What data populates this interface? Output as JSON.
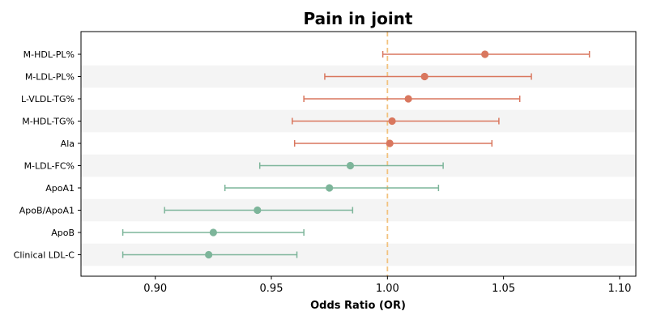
{
  "chart_data": {
    "type": "forest",
    "title": "Pain in joint",
    "xlabel": "Odds Ratio (OR)",
    "ylabel": "",
    "xlim": [
      0.868,
      1.107
    ],
    "xticks": [
      0.9,
      0.95,
      1.0,
      1.05,
      1.1
    ],
    "xtick_labels": [
      "0.90",
      "0.95",
      "1.00",
      "1.05",
      "1.10"
    ],
    "reference_line": 1.0,
    "reference_color": "#f2c27f",
    "grid": false,
    "alternating_row_shading": true,
    "colors": {
      "risk": "#d9775e",
      "protective": "#7db59a"
    },
    "rows": [
      {
        "label": "M-HDL-PL%",
        "or": 1.042,
        "lower": 0.998,
        "upper": 1.087,
        "group": "risk"
      },
      {
        "label": "M-LDL-PL%",
        "or": 1.016,
        "lower": 0.973,
        "upper": 1.062,
        "group": "risk"
      },
      {
        "label": "L-VLDL-TG%",
        "or": 1.009,
        "lower": 0.964,
        "upper": 1.057,
        "group": "risk"
      },
      {
        "label": "M-HDL-TG%",
        "or": 1.002,
        "lower": 0.959,
        "upper": 1.048,
        "group": "risk"
      },
      {
        "label": "Ala",
        "or": 1.001,
        "lower": 0.96,
        "upper": 1.045,
        "group": "risk"
      },
      {
        "label": "M-LDL-FC%",
        "or": 0.984,
        "lower": 0.945,
        "upper": 1.024,
        "group": "protective"
      },
      {
        "label": "ApoA1",
        "or": 0.975,
        "lower": 0.93,
        "upper": 1.022,
        "group": "protective"
      },
      {
        "label": "ApoB/ApoA1",
        "or": 0.944,
        "lower": 0.904,
        "upper": 0.985,
        "group": "protective"
      },
      {
        "label": "ApoB",
        "or": 0.925,
        "lower": 0.886,
        "upper": 0.964,
        "group": "protective"
      },
      {
        "label": "Clinical LDL-C",
        "or": 0.923,
        "lower": 0.886,
        "upper": 0.961,
        "group": "protective"
      }
    ]
  }
}
